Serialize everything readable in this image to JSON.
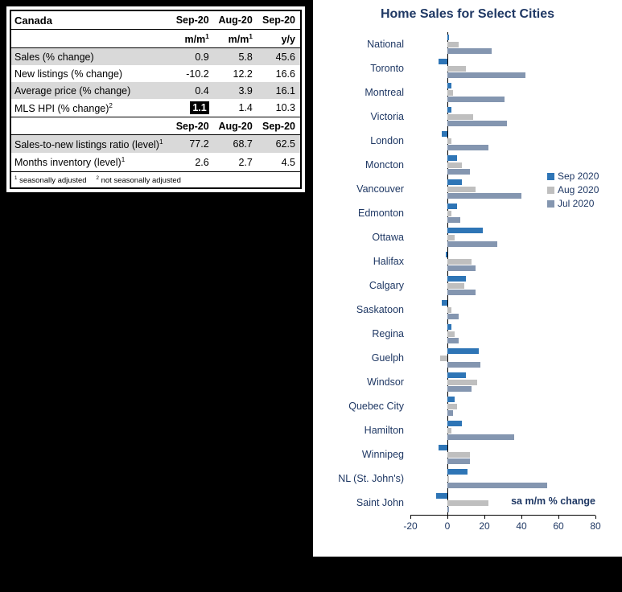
{
  "colors": {
    "background": "#000000",
    "panel": "#ffffff",
    "navy_text": "#1F3864",
    "row_shade": "#D9D9D9",
    "highlight_bg": "#000000",
    "highlight_text": "#ffffff"
  },
  "table": {
    "title": "Canada",
    "header_cols": [
      "Sep-20",
      "Aug-20",
      "Sep-20"
    ],
    "subheaders": [
      {
        "text": "m/m",
        "sup": "1"
      },
      {
        "text": "m/m",
        "sup": "1"
      },
      {
        "text": "y/y",
        "sup": ""
      }
    ],
    "rows": [
      {
        "label": "Sales (% change)",
        "sup": "",
        "values": [
          "0.9",
          "5.8",
          "45.6"
        ],
        "shaded": true,
        "highlight_first": false
      },
      {
        "label": "New listings (% change)",
        "sup": "",
        "values": [
          "-10.2",
          "12.2",
          "16.6"
        ],
        "shaded": false,
        "highlight_first": false
      },
      {
        "label": "Average price (% change)",
        "sup": "",
        "values": [
          "0.4",
          "3.9",
          "16.1"
        ],
        "shaded": true,
        "highlight_first": false
      },
      {
        "label": "MLS HPI (% change)",
        "sup": "2",
        "values": [
          "1.1",
          "1.4",
          "10.3"
        ],
        "shaded": false,
        "highlight_first": true
      }
    ],
    "header2_cols": [
      "Sep-20",
      "Aug-20",
      "Sep-20"
    ],
    "rows2": [
      {
        "label": "Sales-to-new listings ratio (level)",
        "sup": "1",
        "values": [
          "77.2",
          "68.7",
          "62.5"
        ],
        "shaded": true,
        "highlight_first": false
      },
      {
        "label": "Months inventory (level)",
        "sup": "1",
        "values": [
          "2.6",
          "2.7",
          "4.5"
        ],
        "shaded": false,
        "highlight_first": false
      }
    ],
    "footnote_parts": [
      {
        "sup": "1",
        "text": " seasonally adjusted"
      },
      {
        "sup": "2",
        "text": " not seasonally adjusted"
      }
    ]
  },
  "chart_data": {
    "type": "bar",
    "orientation": "horizontal",
    "title": "Home Sales for Select Cities",
    "annotation": "sa m/m % change",
    "xlabel": "",
    "ylabel": "",
    "xlim": [
      -20,
      80
    ],
    "xticks": [
      -20,
      0,
      20,
      40,
      60,
      80
    ],
    "grid": false,
    "legend_position": "right",
    "categories": [
      "National",
      "Toronto",
      "Montreal",
      "Victoria",
      "London",
      "Moncton",
      "Vancouver",
      "Edmonton",
      "Ottawa",
      "Halifax",
      "Calgary",
      "Saskatoon",
      "Regina",
      "Guelph",
      "Windsor",
      "Quebec City",
      "Hamilton",
      "Winnipeg",
      "NL (St. John's)",
      "Saint John"
    ],
    "series": [
      {
        "name": "Sep 2020",
        "color": "#2E75B6",
        "values": [
          1,
          -5,
          2,
          2,
          -3,
          5,
          8,
          5,
          19,
          -1,
          10,
          -3,
          2,
          17,
          10,
          4,
          8,
          -5,
          11,
          -6
        ]
      },
      {
        "name": "Aug 2020",
        "color": "#BFBFBF",
        "values": [
          6,
          10,
          3,
          14,
          2,
          8,
          15,
          2,
          4,
          13,
          9,
          2,
          4,
          -4,
          16,
          5,
          2,
          12,
          1,
          22
        ]
      },
      {
        "name": "Jul 2020",
        "color": "#8496B0",
        "values": [
          24,
          42,
          31,
          32,
          22,
          12,
          40,
          7,
          27,
          15,
          15,
          6,
          6,
          18,
          13,
          3,
          36,
          12,
          54,
          1
        ]
      }
    ]
  }
}
